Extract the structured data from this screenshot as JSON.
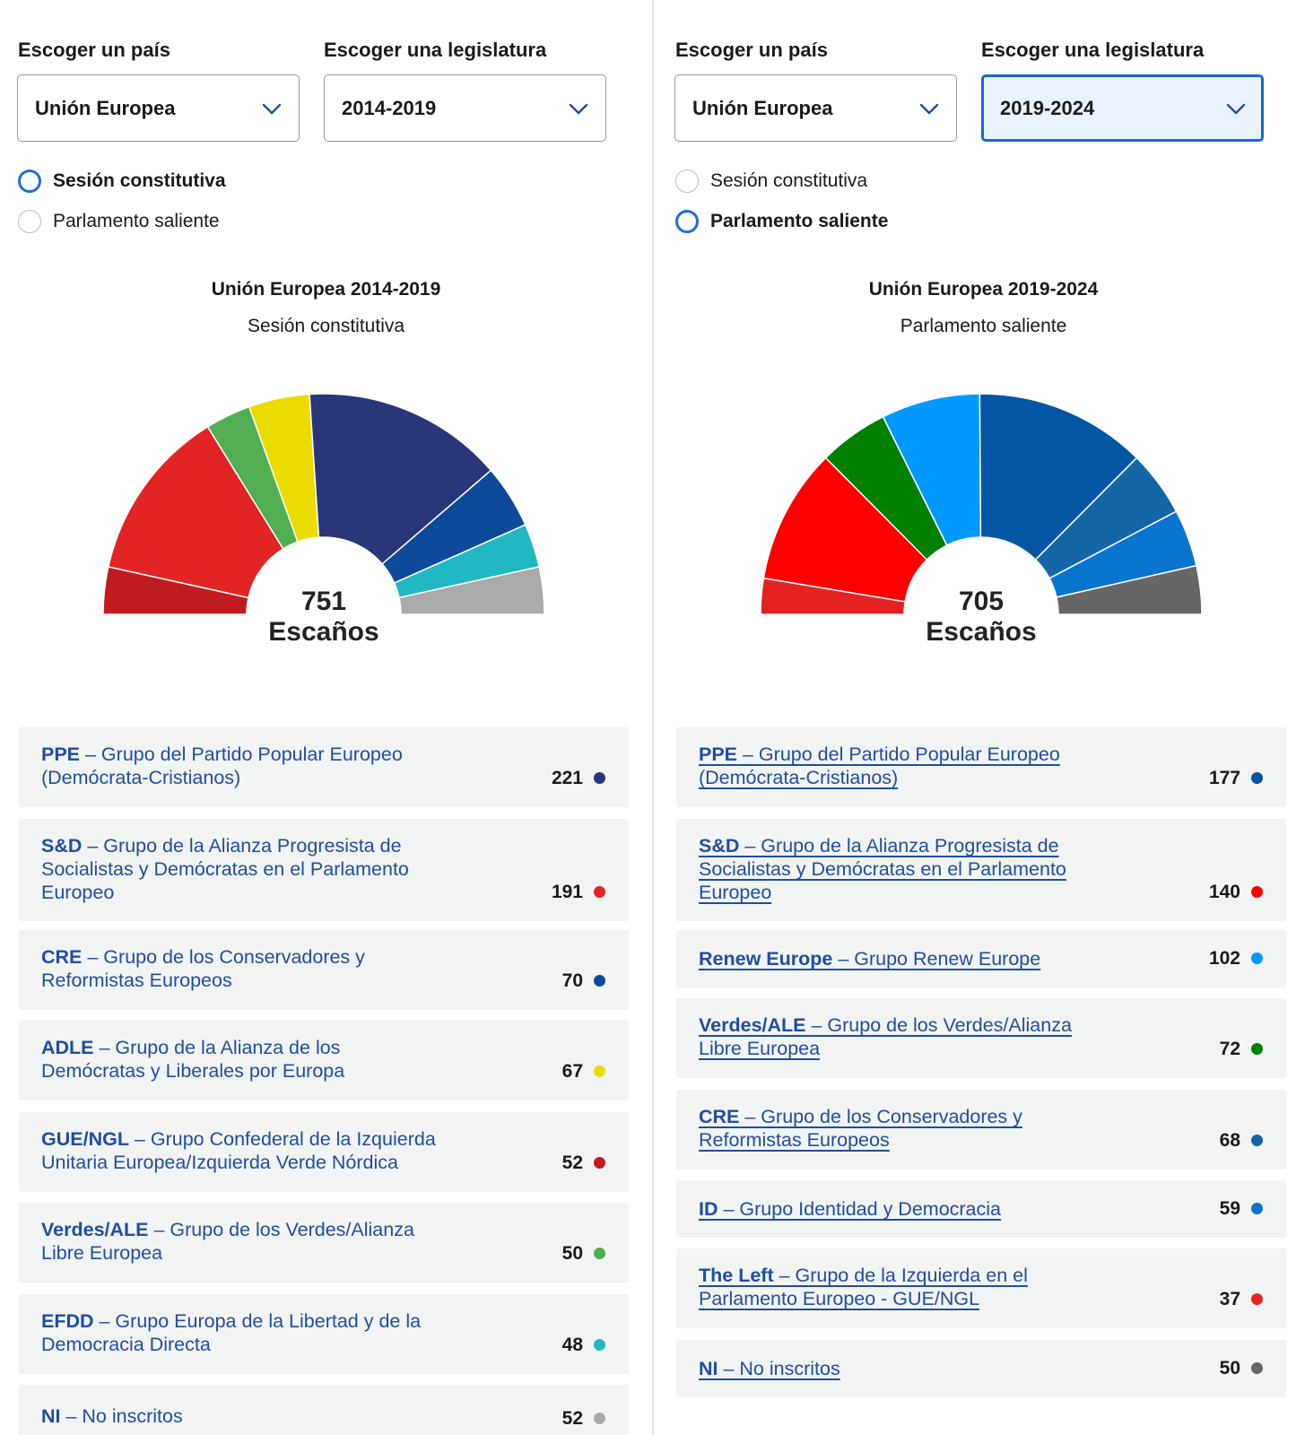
{
  "panels": [
    {
      "country_label": "Escoger un país",
      "legislature_label": "Escoger una legislatura",
      "country_value": "Unión Europea",
      "legislature_value": "2014-2019",
      "radios": [
        {
          "label": "Sesión constitutiva",
          "selected": true
        },
        {
          "label": "Parlamento saliente",
          "selected": false
        }
      ],
      "chart_title": "Unión Europea 2014-2019",
      "chart_subtitle": "Sesión constitutiva",
      "total_seats": "751",
      "seats_word": "Escaños",
      "parties": [
        {
          "abbr": "PPE",
          "name": "Grupo del Partido Popular Europeo (Demócrata-Cristianos)",
          "lines": [
            "PPE – Grupo del Partido Popular Europeo",
            "(Demócrata-Cristianos)"
          ],
          "seats": "221",
          "color": "#2a357a"
        },
        {
          "abbr": "S&D",
          "name": "Grupo de la Alianza Progresista de Socialistas y Demócratas en el Parlamento Europeo",
          "lines": [
            "S&D – Grupo de la Alianza Progresista de",
            "Socialistas y Demócratas en el Parlamento",
            "Europeo"
          ],
          "seats": "191",
          "color": "#e32424"
        },
        {
          "abbr": "CRE",
          "name": "Grupo de los Conservadores y Reformistas Europeos",
          "lines": [
            "CRE – Grupo de los Conservadores y",
            "Reformistas Europeos"
          ],
          "seats": "70",
          "color": "#0e4a9a"
        },
        {
          "abbr": "ADLE",
          "name": "Grupo de la Alianza de los Demócratas y Liberales por Europa",
          "lines": [
            "ADLE – Grupo de la Alianza de los",
            "Demócratas y Liberales por Europa"
          ],
          "seats": "67",
          "color": "#ebdc00"
        },
        {
          "abbr": "GUE/NGL",
          "name": "Grupo Confederal de la Izquierda Unitaria Europea/Izquierda Verde Nórdica",
          "lines": [
            "GUE/NGL – Grupo Confederal de la Izquierda",
            "Unitaria Europea/Izquierda Verde Nórdica"
          ],
          "seats": "52",
          "color": "#c01c20"
        },
        {
          "abbr": "Verdes/ALE",
          "name": "Grupo de los Verdes/Alianza Libre Europea",
          "lines": [
            "Verdes/ALE – Grupo de los Verdes/Alianza",
            "Libre Europea"
          ],
          "seats": "50",
          "color": "#52ae52"
        },
        {
          "abbr": "EFDD",
          "name": "Grupo Europa de la Libertad y de la Democracia Directa",
          "lines": [
            "EFDD – Grupo Europa de la Libertad y de la",
            "Democracia Directa"
          ],
          "seats": "48",
          "color": "#22b8c2"
        },
        {
          "abbr": "NI",
          "name": "No inscritos",
          "lines": [
            "NI – No inscritos"
          ],
          "seats": "52",
          "color": "#aaaaaa"
        }
      ]
    },
    {
      "country_label": "Escoger un país",
      "legislature_label": "Escoger una legislatura",
      "country_value": "Unión Europea",
      "legislature_value": "2019-2024",
      "radios": [
        {
          "label": "Sesión constitutiva",
          "selected": false
        },
        {
          "label": "Parlamento saliente",
          "selected": true
        }
      ],
      "chart_title": "Unión Europea 2019-2024",
      "chart_subtitle": "Parlamento saliente",
      "total_seats": "705",
      "seats_word": "Escaños",
      "parties": [
        {
          "abbr": "PPE",
          "name": "Grupo del Partido Popular Europeo (Demócrata-Cristianos)",
          "lines": [
            "PPE – Grupo del Partido Popular Europeo",
            "(Demócrata-Cristianos)"
          ],
          "seats": "177",
          "color": "#0356a3"
        },
        {
          "abbr": "S&D",
          "name": "Grupo de la Alianza Progresista de Socialistas y Demócratas en el Parlamento Europeo",
          "lines": [
            "S&D – Grupo de la Alianza Progresista de",
            "Socialistas y Demócratas en el Parlamento",
            "Europeo"
          ],
          "seats": "140",
          "color": "#ff0000"
        },
        {
          "abbr": "Renew Europe",
          "name": "Grupo Renew Europe",
          "lines": [
            "Renew Europe – Grupo Renew Europe"
          ],
          "seats": "102",
          "color": "#0099ff"
        },
        {
          "abbr": "Verdes/ALE",
          "name": "Grupo de los Verdes/Alianza Libre Europea",
          "lines": [
            "Verdes/ALE – Grupo de los Verdes/Alianza",
            "Libre Europea"
          ],
          "seats": "72",
          "color": "#008000"
        },
        {
          "abbr": "CRE",
          "name": "Grupo de los Conservadores y Reformistas Europeos",
          "lines": [
            "CRE – Grupo de los Conservadores y",
            "Reformistas Europeos"
          ],
          "seats": "68",
          "color": "#1566a6"
        },
        {
          "abbr": "ID",
          "name": "Grupo Identidad y Democracia",
          "lines": [
            "ID – Grupo Identidad y Democracia"
          ],
          "seats": "59",
          "color": "#0a75cf"
        },
        {
          "abbr": "The Left",
          "name": "Grupo de la Izquierda en el Parlamento Europeo - GUE/NGL",
          "lines": [
            "The Left – Grupo de la Izquierda en el",
            "Parlamento Europeo - GUE/NGL"
          ],
          "seats": "37",
          "color": "#e52222"
        },
        {
          "abbr": "NI",
          "name": "No inscritos",
          "lines": [
            "NI – No inscritos"
          ],
          "seats": "50",
          "color": "#666666"
        }
      ]
    }
  ],
  "chart_data": [
    {
      "type": "pie",
      "title": "Unión Europea 2014-2019",
      "subtitle": "Sesión constitutiva",
      "total": 751,
      "categories": [
        "GUE/NGL",
        "S&D",
        "Verdes/ALE",
        "ADLE",
        "PPE",
        "CRE",
        "EFDD",
        "NI"
      ],
      "values": [
        52,
        191,
        50,
        67,
        221,
        70,
        48,
        52
      ],
      "colors": [
        "#c01c20",
        "#e32424",
        "#52ae52",
        "#ebdc00",
        "#2a357a",
        "#0e4a9a",
        "#22b8c2",
        "#aaaaaa"
      ]
    },
    {
      "type": "pie",
      "title": "Unión Europea 2019-2024",
      "subtitle": "Parlamento saliente",
      "total": 705,
      "categories": [
        "The Left",
        "S&D",
        "Verdes/ALE",
        "Renew Europe",
        "PPE",
        "CRE",
        "ID",
        "NI"
      ],
      "values": [
        37,
        140,
        72,
        102,
        177,
        68,
        59,
        50
      ],
      "colors": [
        "#e52222",
        "#ff0000",
        "#008000",
        "#0099ff",
        "#0356a3",
        "#1566a6",
        "#0a75cf",
        "#666666"
      ]
    }
  ]
}
